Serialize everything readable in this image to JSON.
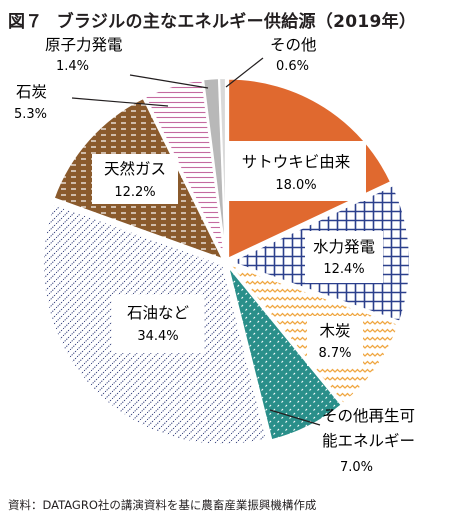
{
  "title": {
    "figure_number": "図７",
    "text": "ブラジルの主なエネルギー供給源（2019年）"
  },
  "source": "資料：DATAGRO社の講演資料を基に農畜産業振興機構作成",
  "colors": {
    "sugarcane": "#e0692f",
    "hydro": "#2b3f8c",
    "wood": "#f0a742",
    "renewable": "#2a8f8a",
    "oil": "#2e3a78",
    "gas": "#8a5a2c",
    "coal": "#c46aa0",
    "nuclear": "#b8b8b8",
    "other": "#d9d9d9"
  },
  "chart_data": {
    "type": "pie",
    "title": "ブラジルの主なエネルギー供給源（2019年）",
    "unit": "%",
    "start": "12 o'clock, clockwise",
    "slices": [
      {
        "name": "サトウキビ由来",
        "value": 18.0,
        "label": "18.0%"
      },
      {
        "name": "水力発電",
        "value": 12.4,
        "label": "12.4%"
      },
      {
        "name": "木炭",
        "value": 8.7,
        "label": "8.7%"
      },
      {
        "name": "その他再生可能エネルギー",
        "name_lines": [
          "その他再生可",
          "能エネルギー"
        ],
        "value": 7.0,
        "label": "7.0%"
      },
      {
        "name": "石油など",
        "value": 34.4,
        "label": "34.4%"
      },
      {
        "name": "天然ガス",
        "value": 12.2,
        "label": "12.2%"
      },
      {
        "name": "石炭",
        "value": 5.3,
        "label": "5.3%"
      },
      {
        "name": "原子力発電",
        "value": 1.4,
        "label": "1.4%"
      },
      {
        "name": "その他",
        "value": 0.6,
        "label": "0.6%"
      }
    ]
  }
}
